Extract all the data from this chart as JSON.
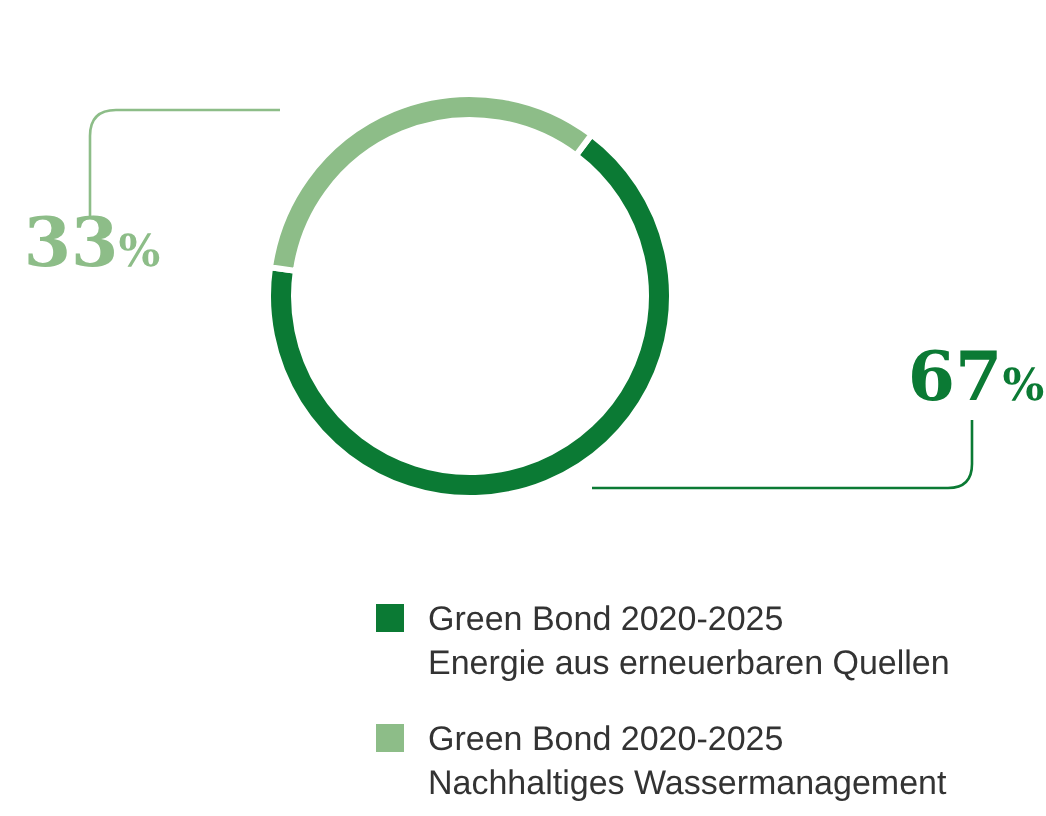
{
  "chart_data": {
    "type": "donut",
    "categories": [
      "Green Bond 2020-2025\nEnergie aus erneuerbaren Quellen",
      "Green Bond 2020-2025\nNachhaltiges Wassermanagement"
    ],
    "values": [
      67,
      33
    ],
    "colors": [
      "#0b7a34",
      "#8dbd88"
    ],
    "value_labels": [
      "67%",
      "33%"
    ],
    "legend": "bottom"
  }
}
